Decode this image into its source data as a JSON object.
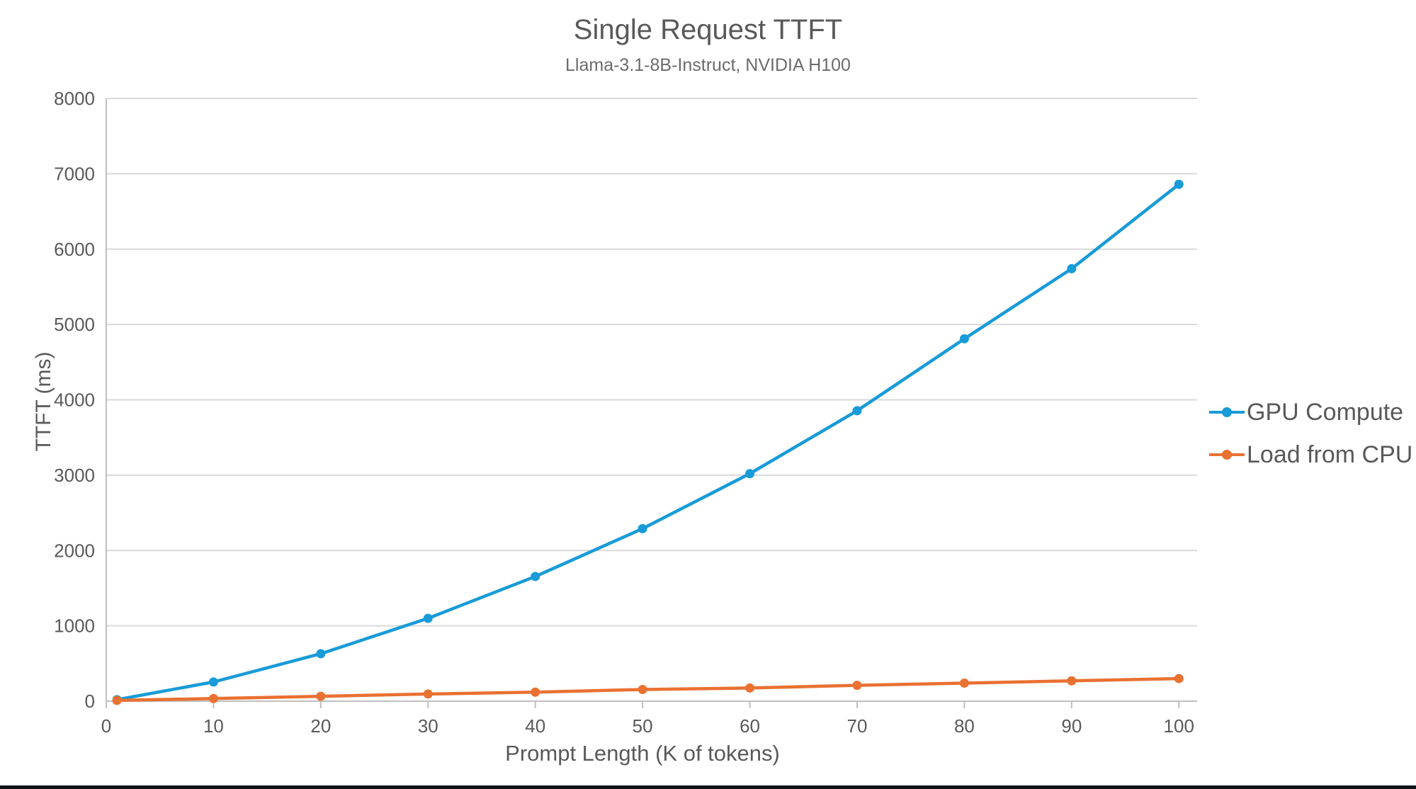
{
  "chart_data": {
    "type": "line",
    "title": "Single Request TTFT",
    "subtitle": "Llama-3.1-8B-Instruct, NVIDIA H100",
    "xlabel": "Prompt Length (K of tokens)",
    "ylabel": "TTFT (ms)",
    "x": [
      1,
      10,
      20,
      30,
      40,
      50,
      60,
      70,
      80,
      90,
      100
    ],
    "series": [
      {
        "name": "GPU Compute",
        "color": "#189BD8",
        "marker": "circle",
        "values": [
          20,
          255,
          630,
          1100,
          1655,
          2290,
          3020,
          3855,
          4810,
          5740,
          6860
        ]
      },
      {
        "name": "Load from CPU",
        "color": "#E97132",
        "marker": "circle",
        "values": [
          10,
          35,
          65,
          95,
          120,
          155,
          175,
          210,
          240,
          270,
          300
        ]
      }
    ],
    "xlim": [
      0,
      101.7
    ],
    "ylim": [
      0,
      8000
    ],
    "xticks": [
      0,
      10,
      20,
      30,
      40,
      50,
      60,
      70,
      80,
      90,
      100
    ],
    "yticks": [
      0,
      1000,
      2000,
      3000,
      4000,
      5000,
      6000,
      7000,
      8000
    ],
    "grid": "horizontal-only",
    "legend_position": "right"
  },
  "palette": {
    "text": "#595959",
    "grid": "#D9D9D9",
    "axis": "#BFBFBF",
    "background": "#FFFFFF",
    "bottom_bar": "#101418"
  }
}
